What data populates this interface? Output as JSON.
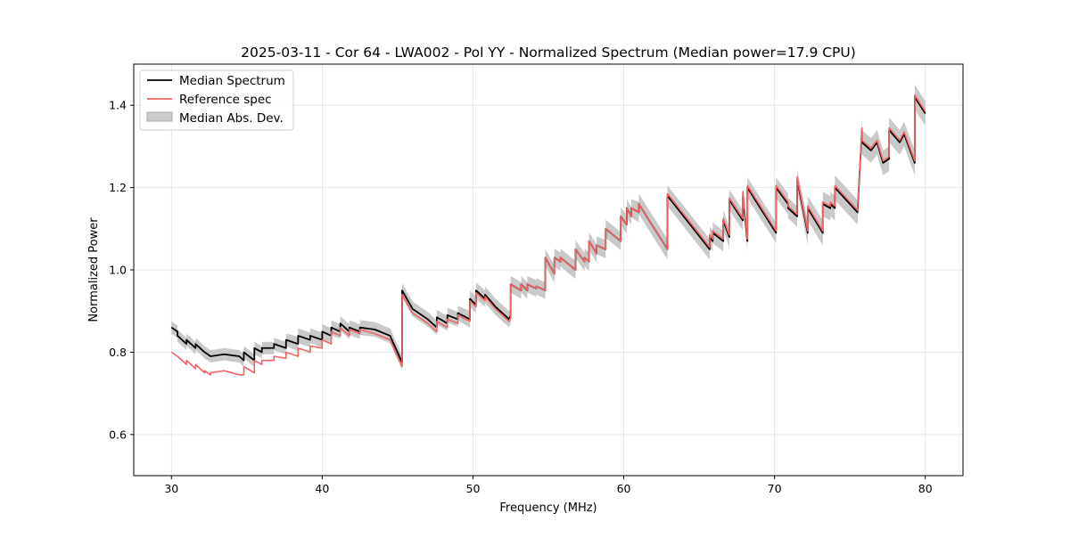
{
  "chart_data": {
    "type": "line",
    "title": "2025-03-11 - Cor 64 - LWA002 - Pol YY - Normalized Spectrum (Median power=17.9 CPU)",
    "xlabel": "Frequency (MHz)",
    "ylabel": "Normalized Power",
    "xlim": [
      27.5,
      82.5
    ],
    "ylim": [
      0.5,
      1.5
    ],
    "x_ticks": [
      30,
      40,
      50,
      60,
      70,
      80
    ],
    "y_ticks": [
      0.6,
      0.8,
      1.0,
      1.2,
      1.4
    ],
    "x_tick_labels": [
      "30",
      "40",
      "50",
      "60",
      "70",
      "80"
    ],
    "y_tick_labels": [
      "0.6",
      "0.8",
      "1.0",
      "1.2",
      "1.4"
    ],
    "grid": true,
    "legend_location": "upper-left",
    "legend": [
      "Median Spectrum",
      "Reference spec",
      "Median Abs. Dev."
    ],
    "colors": {
      "median": "#000000",
      "reference": "#f06464",
      "mad": "#c0c0c0"
    },
    "series": [
      {
        "name": "Median Spectrum",
        "x": [
          30.0,
          30.4,
          30.4,
          31.0,
          31.0,
          31.6,
          31.6,
          32.2,
          32.2,
          32.6,
          32.6,
          33.5,
          34.5,
          34.8,
          34.8,
          35.5,
          35.5,
          36.0,
          36.0,
          36.8,
          36.8,
          37.6,
          37.6,
          38.4,
          38.4,
          39.2,
          39.2,
          40.0,
          40.0,
          40.6,
          40.6,
          41.2,
          41.2,
          41.8,
          41.8,
          42.5,
          42.5,
          43.5,
          44.5,
          45.3,
          45.3,
          46.0,
          47.0,
          47.6,
          47.6,
          48.3,
          48.3,
          49.0,
          49.0,
          49.8,
          49.8,
          50.2,
          50.2,
          50.8,
          50.8,
          51.5,
          52.4,
          52.5,
          52.5,
          53.2,
          53.2,
          53.6,
          53.6,
          54.2,
          54.2,
          54.8,
          54.8,
          55.4,
          55.4,
          55.8,
          55.8,
          56.8,
          56.8,
          57.4,
          57.4,
          57.7,
          57.7,
          58.2,
          58.2,
          58.8,
          58.8,
          59.8,
          59.8,
          60.2,
          60.2,
          60.5,
          60.5,
          61.0,
          61.0,
          62.9,
          62.9,
          65.7,
          65.7,
          65.9,
          65.9,
          66.6,
          66.6,
          67.0,
          67.0,
          67.9,
          67.9,
          68.2,
          68.2,
          70.1,
          70.1,
          70.9,
          70.9,
          71.5,
          71.5,
          72.2,
          72.2,
          73.2,
          73.2,
          73.7,
          73.7,
          74.0,
          74.0,
          75.5,
          75.8,
          75.8,
          76.4,
          76.8,
          77.2,
          77.6,
          77.6,
          78.3,
          78.6,
          79.3,
          79.3,
          80.0
        ],
        "y": [
          0.86,
          0.85,
          0.84,
          0.82,
          0.83,
          0.81,
          0.82,
          0.8,
          0.8,
          0.79,
          0.79,
          0.795,
          0.79,
          0.78,
          0.8,
          0.78,
          0.81,
          0.8,
          0.81,
          0.81,
          0.82,
          0.81,
          0.83,
          0.82,
          0.84,
          0.83,
          0.84,
          0.83,
          0.85,
          0.84,
          0.86,
          0.85,
          0.87,
          0.85,
          0.86,
          0.85,
          0.86,
          0.855,
          0.84,
          0.775,
          0.95,
          0.905,
          0.88,
          0.86,
          0.885,
          0.87,
          0.89,
          0.88,
          0.895,
          0.88,
          0.93,
          0.915,
          0.95,
          0.93,
          0.94,
          0.91,
          0.88,
          0.89,
          0.965,
          0.95,
          0.965,
          0.95,
          0.965,
          0.955,
          0.96,
          0.95,
          1.03,
          0.99,
          1.03,
          1.02,
          1.03,
          1.0,
          1.05,
          1.02,
          1.03,
          1.02,
          1.07,
          1.04,
          1.06,
          1.05,
          1.1,
          1.07,
          1.13,
          1.11,
          1.15,
          1.13,
          1.15,
          1.14,
          1.16,
          1.05,
          1.18,
          1.05,
          1.08,
          1.07,
          1.09,
          1.07,
          1.12,
          1.08,
          1.17,
          1.12,
          1.18,
          1.07,
          1.2,
          1.09,
          1.2,
          1.16,
          1.15,
          1.13,
          1.22,
          1.09,
          1.15,
          1.09,
          1.16,
          1.15,
          1.16,
          1.15,
          1.2,
          1.14,
          1.34,
          1.31,
          1.29,
          1.31,
          1.26,
          1.27,
          1.34,
          1.31,
          1.33,
          1.26,
          1.42,
          1.38
        ]
      },
      {
        "name": "Reference spec",
        "x": [
          30.0,
          30.4,
          30.4,
          31.0,
          31.0,
          31.6,
          31.6,
          32.2,
          32.2,
          32.6,
          32.6,
          33.5,
          34.5,
          34.8,
          34.8,
          35.5,
          35.5,
          36.0,
          36.0,
          36.8,
          36.8,
          37.6,
          37.6,
          38.4,
          38.4,
          39.2,
          39.2,
          40.0,
          40.0,
          40.6,
          40.6,
          41.2,
          41.2,
          41.8,
          41.8,
          42.5,
          42.5,
          43.5,
          44.5,
          45.3,
          45.3,
          46.0,
          47.0,
          47.6,
          47.6,
          48.3,
          48.3,
          49.0,
          49.0,
          49.8,
          49.8,
          50.2,
          50.2,
          50.8,
          50.8,
          51.5,
          52.4,
          52.5,
          52.5,
          53.2,
          53.2,
          53.6,
          53.6,
          54.2,
          54.2,
          54.8,
          54.8,
          55.4,
          55.4,
          55.8,
          55.8,
          56.8,
          56.8,
          57.4,
          57.4,
          57.7,
          57.7,
          58.2,
          58.2,
          58.8,
          58.8,
          59.8,
          59.8,
          60.2,
          60.2,
          60.5,
          60.5,
          61.0,
          61.0,
          62.9,
          62.9,
          65.7,
          65.7,
          65.9,
          65.9,
          66.6,
          66.6,
          67.0,
          67.0,
          67.9,
          67.9,
          68.2,
          68.2,
          70.1,
          70.1,
          70.9,
          70.9,
          71.5,
          71.5,
          72.2,
          72.2,
          73.2,
          73.2,
          73.7,
          73.7,
          74.0,
          74.0,
          75.5,
          75.8,
          75.8,
          76.4,
          76.8,
          77.2,
          77.6,
          77.6,
          78.3,
          78.6,
          79.3,
          79.3,
          80.0
        ],
        "y": [
          0.8,
          0.79,
          0.79,
          0.77,
          0.78,
          0.76,
          0.77,
          0.75,
          0.755,
          0.745,
          0.75,
          0.755,
          0.745,
          0.745,
          0.765,
          0.75,
          0.78,
          0.77,
          0.78,
          0.78,
          0.79,
          0.785,
          0.8,
          0.79,
          0.81,
          0.8,
          0.815,
          0.81,
          0.83,
          0.82,
          0.85,
          0.84,
          0.86,
          0.84,
          0.855,
          0.845,
          0.855,
          0.845,
          0.83,
          0.765,
          0.94,
          0.895,
          0.87,
          0.85,
          0.875,
          0.86,
          0.88,
          0.87,
          0.89,
          0.875,
          0.925,
          0.91,
          0.945,
          0.925,
          0.935,
          0.905,
          0.875,
          0.885,
          0.965,
          0.95,
          0.965,
          0.95,
          0.965,
          0.955,
          0.96,
          0.95,
          1.03,
          0.99,
          1.03,
          1.02,
          1.03,
          1.0,
          1.05,
          1.02,
          1.03,
          1.02,
          1.07,
          1.04,
          1.06,
          1.05,
          1.1,
          1.07,
          1.13,
          1.11,
          1.15,
          1.13,
          1.15,
          1.14,
          1.16,
          1.05,
          1.185,
          1.055,
          1.085,
          1.075,
          1.095,
          1.075,
          1.125,
          1.085,
          1.175,
          1.125,
          1.19,
          1.075,
          1.205,
          1.095,
          1.205,
          1.165,
          1.155,
          1.135,
          1.225,
          1.095,
          1.155,
          1.095,
          1.165,
          1.155,
          1.165,
          1.155,
          1.205,
          1.145,
          1.345,
          1.315,
          1.295,
          1.315,
          1.265,
          1.275,
          1.345,
          1.315,
          1.335,
          1.265,
          1.425,
          1.385
        ]
      }
    ],
    "mad_halfwidth": [
      0.015,
      0.015,
      0.018,
      0.018,
      0.02,
      0.022,
      0.025,
      0.025,
      0.03,
      0.03
    ]
  }
}
